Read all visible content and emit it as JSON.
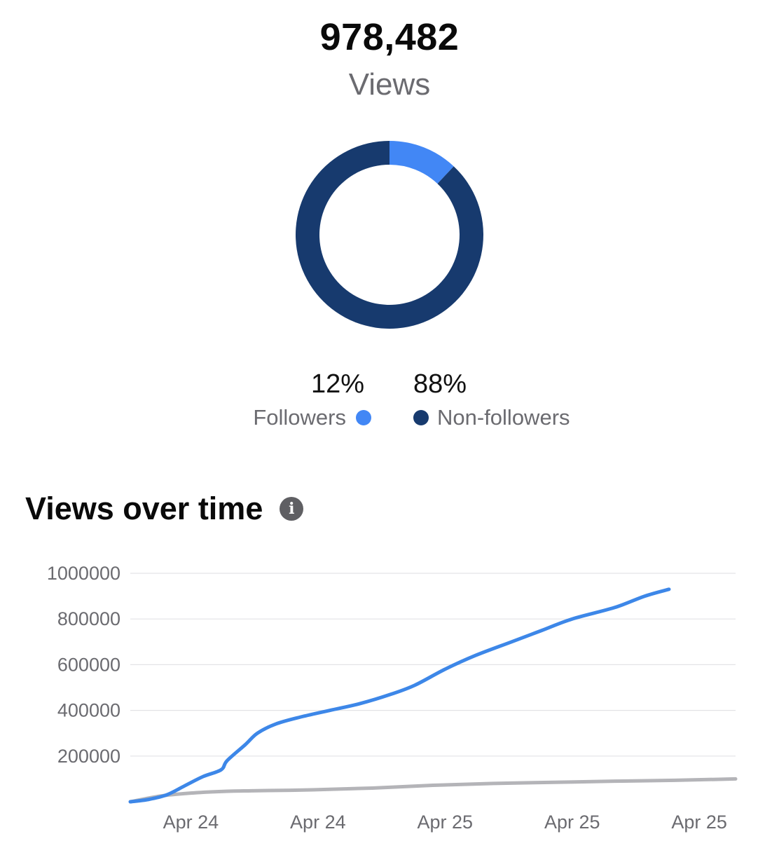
{
  "summary": {
    "total_value": "978,482",
    "total_label": "Views"
  },
  "audience": {
    "followers": {
      "percent_label": "12%",
      "label": "Followers",
      "value": 12,
      "color": "#4287f5"
    },
    "non_followers": {
      "percent_label": "88%",
      "label": "Non-followers",
      "value": 88,
      "color": "#173a6e"
    }
  },
  "section": {
    "title": "Views over time",
    "info_icon": "info-icon"
  },
  "chart_data": [
    {
      "type": "pie",
      "labels": [
        "Followers",
        "Non-followers"
      ],
      "values": [
        12,
        88
      ],
      "colors": [
        "#4287f5",
        "#173a6e"
      ]
    },
    {
      "type": "line",
      "title": "Views over time",
      "yticks": [
        200000,
        400000,
        600000,
        800000,
        1000000
      ],
      "ytick_labels": [
        "200000",
        "400000",
        "600000",
        "800000",
        "1000000"
      ],
      "ylim": [
        0,
        1000000
      ],
      "xlim": [
        0,
        1
      ],
      "xtick_labels": [
        "Apr 24",
        "Apr 24",
        "Apr 25",
        "Apr 25",
        "Apr 25"
      ],
      "xtick_positions": [
        0.1,
        0.31,
        0.52,
        0.73,
        0.94
      ],
      "grid": true,
      "series": [
        {
          "color": "#3d87e8",
          "x": [
            0,
            0.03,
            0.06,
            0.09,
            0.12,
            0.15,
            0.16,
            0.19,
            0.21,
            0.24,
            0.28,
            0.33,
            0.38,
            0.43,
            0.47,
            0.52,
            0.57,
            0.63,
            0.68,
            0.73,
            0.8,
            0.85,
            0.89
          ],
          "y": [
            0,
            10000,
            30000,
            70000,
            110000,
            140000,
            180000,
            250000,
            300000,
            340000,
            370000,
            400000,
            430000,
            470000,
            510000,
            580000,
            640000,
            700000,
            750000,
            800000,
            850000,
            900000,
            930000
          ]
        },
        {
          "color": "#b4b4b8",
          "x": [
            0,
            0.05,
            0.1,
            0.15,
            0.2,
            0.3,
            0.4,
            0.5,
            0.6,
            0.7,
            0.8,
            0.9,
            1.0
          ],
          "y": [
            0,
            25000,
            38000,
            45000,
            48000,
            52000,
            60000,
            72000,
            80000,
            85000,
            90000,
            94000,
            100000
          ]
        }
      ]
    }
  ]
}
